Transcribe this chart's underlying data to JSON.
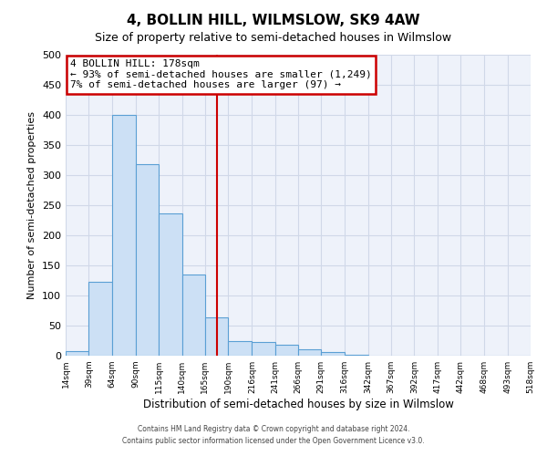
{
  "title": "4, BOLLIN HILL, WILMSLOW, SK9 4AW",
  "subtitle": "Size of property relative to semi-detached houses in Wilmslow",
  "xlabel": "Distribution of semi-detached houses by size in Wilmslow",
  "ylabel": "Number of semi-detached properties",
  "bin_edges": [
    14,
    39,
    64,
    90,
    115,
    140,
    165,
    190,
    216,
    241,
    266,
    291,
    316,
    342,
    367,
    392,
    417,
    442,
    468,
    493,
    518
  ],
  "counts": [
    7,
    123,
    400,
    318,
    237,
    135,
    63,
    25,
    22,
    18,
    11,
    6,
    2,
    0,
    0,
    0,
    0,
    0,
    0,
    0
  ],
  "bar_face_color": "#cce0f5",
  "bar_edge_color": "#5a9fd4",
  "property_line_x": 178,
  "property_line_color": "#cc0000",
  "annotation_title": "4 BOLLIN HILL: 178sqm",
  "annotation_line1": "← 93% of semi-detached houses are smaller (1,249)",
  "annotation_line2": "7% of semi-detached houses are larger (97) →",
  "annotation_box_color": "#cc0000",
  "ylim": [
    0,
    500
  ],
  "yticks": [
    0,
    50,
    100,
    150,
    200,
    250,
    300,
    350,
    400,
    450,
    500
  ],
  "xtick_labels": [
    "14sqm",
    "39sqm",
    "64sqm",
    "90sqm",
    "115sqm",
    "140sqm",
    "165sqm",
    "190sqm",
    "216sqm",
    "241sqm",
    "266sqm",
    "291sqm",
    "316sqm",
    "342sqm",
    "367sqm",
    "392sqm",
    "417sqm",
    "442sqm",
    "468sqm",
    "493sqm",
    "518sqm"
  ],
  "footer_line1": "Contains HM Land Registry data © Crown copyright and database right 2024.",
  "footer_line2": "Contains public sector information licensed under the Open Government Licence v3.0.",
  "grid_color": "#d0d8e8",
  "background_color": "#eef2fa"
}
